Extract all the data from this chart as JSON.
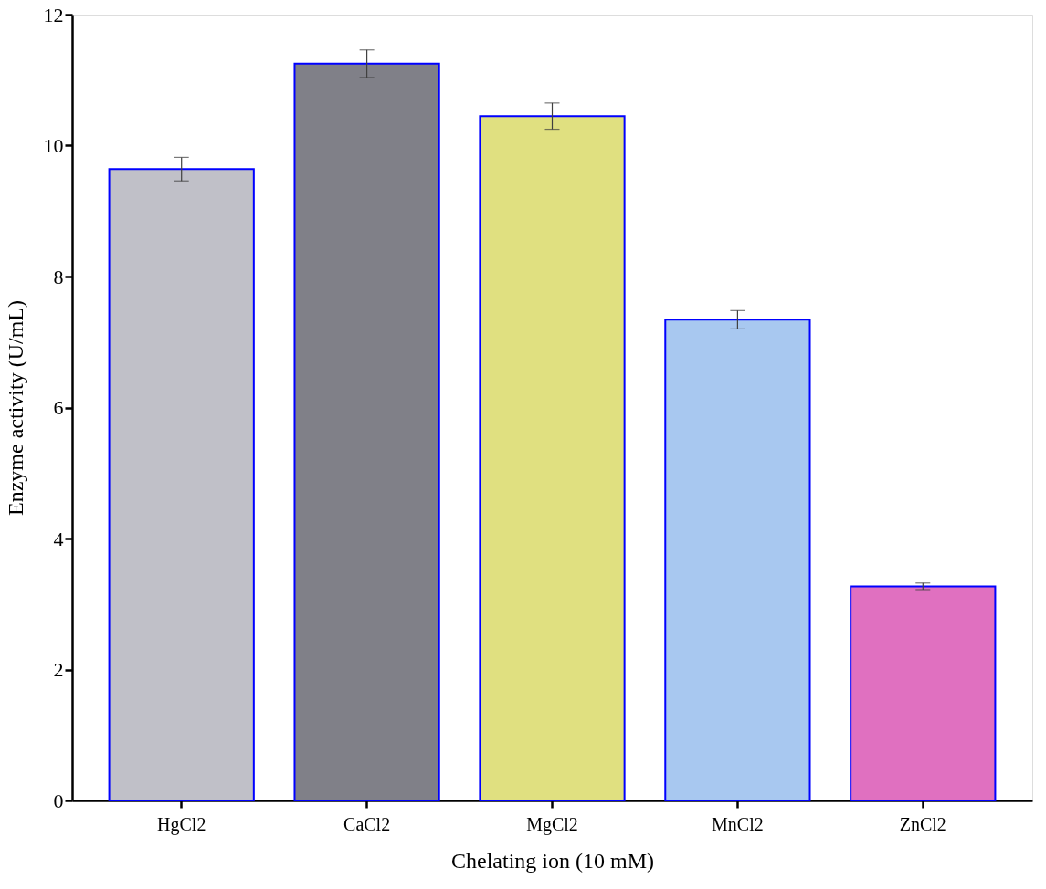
{
  "chart_data": {
    "type": "bar",
    "xlabel": "Chelating ion (10 mM)",
    "ylabel": "Enzyme activity (U/mL)",
    "categories": [
      "HgCl2",
      "CaCl2",
      "MgCl2",
      "MnCl2",
      "ZnCl2"
    ],
    "values": [
      9.64,
      11.25,
      10.45,
      7.34,
      3.27
    ],
    "errors": [
      0.18,
      0.21,
      0.2,
      0.14,
      0.05
    ],
    "colors": [
      "#c0c0c8",
      "#808088",
      "#e0e080",
      "#a8c8f0",
      "#e070c0"
    ],
    "ylim": [
      0,
      12
    ],
    "yticks": [
      0,
      2,
      4,
      6,
      8,
      10,
      12
    ],
    "grid": false
  }
}
